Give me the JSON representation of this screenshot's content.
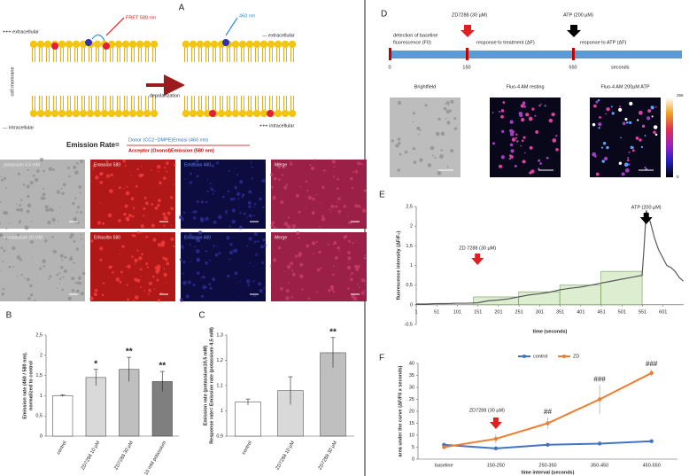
{
  "figure": {
    "A": {
      "label": "A",
      "top_out": "+++ extracellular",
      "bottom_out": "--- intracellular",
      "membrane": "cell memrane",
      "fret": "FRET 580 nm",
      "emit": "460 nm",
      "top_in": "--- extracellular",
      "bottom_in": "+++ intracellular",
      "arrow": "depolarization",
      "rate": "Emission Rate=",
      "numerator": "Donor (CC2−DMPE)Emissi     (460 nm)",
      "denominator": "Acceptor (Oxonol)Emission (580 nm)",
      "images": [
        [
          "potassium 4.5 mM",
          "Emission 580",
          "Emission 460",
          "Merge"
        ],
        [
          "+ potassium 10 mM",
          "Emission 580",
          "Emission 460",
          "Merge"
        ]
      ]
    },
    "D": {
      "label": "D",
      "zd": "ZD7288 (30 µM)",
      "atp": "ATP (200 µM)",
      "phase1": [
        "detection of baseline",
        "fluorescence (F0)"
      ],
      "phase2": "response to treatment  (ΔF)",
      "phase3": "response to ATP (ΔF)",
      "t0": "0",
      "t1": "150",
      "t2": "550",
      "unit": "seconds",
      "images": [
        "Brightfield",
        "Fluo-4 AM resting",
        "Fluo-4 AM  200µM ATP"
      ],
      "cbar_max": "256",
      "cbar_min": "0"
    }
  },
  "chart_data": [
    {
      "type": "bar",
      "label": "B",
      "ylabel": [
        "Emission rate (460 / 580 nm),",
        "normalized to control"
      ],
      "categories": [
        "control",
        "ZD7288 10 µM",
        "ZD7288 30 µM",
        "10 mM potassium"
      ],
      "values": [
        1.0,
        1.45,
        1.65,
        1.35
      ],
      "errors": [
        0.02,
        0.2,
        0.3,
        0.25
      ],
      "colors": [
        "#ffffff",
        "#d9d9d9",
        "#bfbfbf",
        "#7f7f7f"
      ],
      "significance": [
        {
          "index": 1,
          "label": "*"
        },
        {
          "index": 2,
          "label": "**"
        },
        {
          "index": 3,
          "label": "**"
        }
      ],
      "ylim": [
        0,
        2.5
      ],
      "yticks": [
        0,
        {
          "value": 0.5,
          "label": "0,5"
        },
        1,
        {
          "value": 1.5,
          "label": "1,5"
        },
        2,
        {
          "value": 2.5,
          "label": "2,5"
        }
      ]
    },
    {
      "type": "bar",
      "label": "C",
      "ylabel": [
        "Emission rate (potassium10,5 mM)",
        "Response rate= Emission rate (potassium 4,5 mM)"
      ],
      "categories": [
        "control",
        "ZD7288 10 µM",
        "ZD7288 30 µM"
      ],
      "values": [
        1.035,
        1.08,
        1.23
      ],
      "errors": [
        0.012,
        0.055,
        0.06
      ],
      "colors": [
        "#ffffff",
        "#d9d9d9",
        "#bfbfbf"
      ],
      "significance": [
        {
          "index": 2,
          "label": "**"
        }
      ],
      "ylim": [
        0.9,
        1.3
      ],
      "yticks": [
        {
          "value": 0.9,
          "label": "0,9"
        },
        1,
        {
          "value": 1.1,
          "label": "1,1"
        },
        {
          "value": 1.2,
          "label": "1,2"
        },
        {
          "value": 1.3,
          "label": "1,3"
        }
      ]
    },
    {
      "type": "line",
      "label": "E",
      "ylabel": "fluorescence intensity (ΔF/F₀)",
      "xlabel": "time (seconds)",
      "x": [
        1,
        25,
        50,
        75,
        100,
        125,
        150,
        175,
        200,
        225,
        250,
        275,
        300,
        325,
        350,
        375,
        400,
        425,
        450,
        475,
        500,
        525,
        550,
        555,
        560,
        570,
        580,
        590,
        600,
        610,
        620,
        630,
        640,
        650
      ],
      "series": [
        {
          "color": "#595959",
          "values": [
            0.02,
            0.02,
            0.03,
            0.03,
            0.04,
            0.04,
            0.05,
            0.1,
            0.12,
            0.15,
            0.2,
            0.25,
            0.28,
            0.32,
            0.38,
            0.42,
            0.45,
            0.5,
            0.55,
            0.6,
            0.65,
            0.7,
            0.75,
            1.5,
            2.4,
            2.1,
            1.7,
            1.4,
            1.2,
            1.0,
            0.95,
            0.85,
            0.7,
            0.6
          ]
        }
      ],
      "regions": [
        {
          "x": [
            140,
            250
          ],
          "y": 0.2
        },
        {
          "x": [
            250,
            350
          ],
          "y": 0.33
        },
        {
          "x": [
            350,
            450
          ],
          "y": 0.5
        },
        {
          "x": [
            450,
            550
          ],
          "y": 0.85
        }
      ],
      "annotations": [
        {
          "text": "ZD 7288 (30 µM)",
          "x": 150,
          "color": "#e02020"
        },
        {
          "text": "ATP (200 µM)",
          "x": 560,
          "color": "#000000"
        }
      ],
      "xlim": [
        1,
        651
      ],
      "xticks": [
        1,
        51,
        101,
        151,
        201,
        251,
        301,
        351,
        401,
        451,
        501,
        551,
        601
      ],
      "ylim": [
        -0.5,
        2.5
      ],
      "yticks": [
        {
          "value": -0.5,
          "label": "-0,5"
        },
        0,
        {
          "value": 0.5,
          "label": "0,5"
        },
        1,
        {
          "value": 1.5,
          "label": "1,5"
        },
        2,
        {
          "value": 2.5,
          "label": "2,5"
        }
      ]
    },
    {
      "type": "line",
      "label": "F",
      "ylabel": "area under the curve (ΔF/F0 x seconds)",
      "xlabel": "time interval (seconds)",
      "categories": [
        "baseline",
        "150-250",
        "250-350",
        "350-450",
        "450-550"
      ],
      "series": [
        {
          "name": "control",
          "color": "#4472c4",
          "values": [
            6,
            4.5,
            6,
            6.5,
            7.5
          ],
          "errors": [
            0.5,
            0.5,
            0.6,
            0.6,
            0.8
          ]
        },
        {
          "name": "ZD",
          "color": "#ed7d31",
          "values": [
            5,
            8.5,
            15,
            25,
            36
          ],
          "errors": [
            0.5,
            2,
            2.5,
            6,
            1.5
          ]
        }
      ],
      "significance": [
        {
          "index": 2,
          "label": "##"
        },
        {
          "index": 3,
          "label": "###"
        },
        {
          "index": 4,
          "label": "###"
        }
      ],
      "annotation": {
        "text": "ZD7288 (30 µM)",
        "index": 1
      },
      "ylim": [
        0,
        40
      ],
      "yticks": [
        0,
        5,
        10,
        15,
        20,
        25,
        30,
        35,
        40
      ]
    }
  ]
}
